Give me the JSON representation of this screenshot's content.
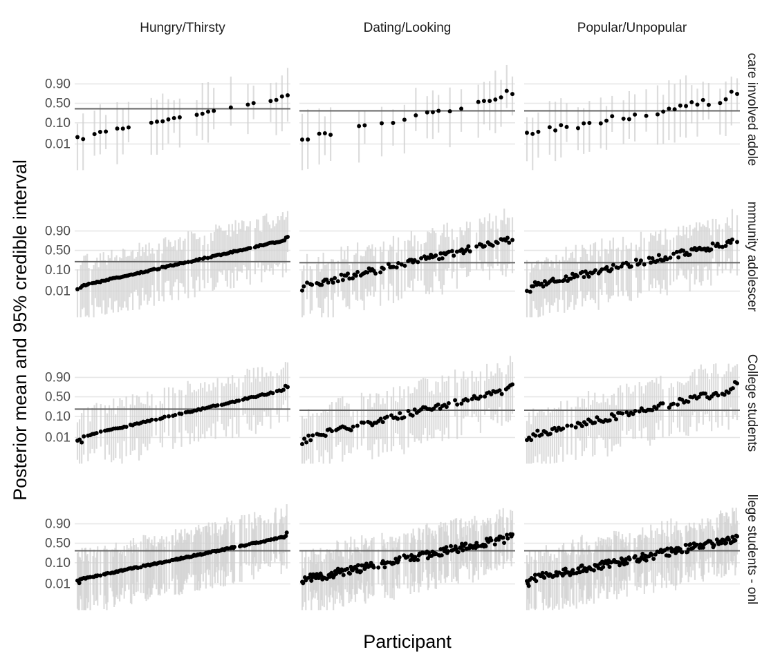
{
  "chart_data": {
    "type": "scatter",
    "description_kind": "faceted point-range plot",
    "xlabel": "Participant",
    "ylabel": "Posterior mean and 95% credible interval",
    "column_facets": [
      "Hungry/Thirsty",
      "Dating/Looking",
      "Popular/Unpopular"
    ],
    "row_facets": [
      "care involved adole",
      "mmunity adolescer",
      "College students",
      "llege students - onl"
    ],
    "y_scale": "logit",
    "y_ticks": [
      0.01,
      0.1,
      0.5,
      0.9
    ],
    "y_tick_labels": [
      "0.01",
      "0.10",
      "0.50",
      "0.90"
    ],
    "grid": true,
    "panel_ylim_y": [
      0.0005,
      0.998
    ],
    "reference_lines": [
      [
        0.35,
        0.3,
        0.3
      ],
      [
        0.22,
        0.2,
        0.2
      ],
      [
        0.2,
        0.18,
        0.18
      ],
      [
        0.3,
        0.3,
        0.3
      ]
    ],
    "participants_per_row": [
      38,
      130,
      100,
      230
    ],
    "panels": [
      {
        "row": 0,
        "col": 0,
        "mean_range": [
          0.015,
          0.75
        ],
        "points_shown": 26
      },
      {
        "row": 0,
        "col": 1,
        "mean_range": [
          0.012,
          0.75
        ],
        "points_shown": 24
      },
      {
        "row": 0,
        "col": 2,
        "mean_range": [
          0.02,
          0.75
        ],
        "points_shown": 28
      },
      {
        "row": 1,
        "col": 0,
        "mean_range": [
          0.01,
          0.85
        ],
        "points_shown": 110
      },
      {
        "row": 1,
        "col": 1,
        "mean_range": [
          0.01,
          0.85
        ],
        "points_shown": 95
      },
      {
        "row": 1,
        "col": 2,
        "mean_range": [
          0.01,
          0.82
        ],
        "points_shown": 95
      },
      {
        "row": 2,
        "col": 0,
        "mean_range": [
          0.006,
          0.8
        ],
        "points_shown": 85
      },
      {
        "row": 2,
        "col": 1,
        "mean_range": [
          0.005,
          0.8
        ],
        "points_shown": 85
      },
      {
        "row": 2,
        "col": 2,
        "mean_range": [
          0.007,
          0.8
        ],
        "points_shown": 85
      },
      {
        "row": 3,
        "col": 0,
        "mean_range": [
          0.01,
          0.78
        ],
        "points_shown": 160
      },
      {
        "row": 3,
        "col": 1,
        "mean_range": [
          0.01,
          0.75
        ],
        "points_shown": 160
      },
      {
        "row": 3,
        "col": 2,
        "mean_range": [
          0.01,
          0.72
        ],
        "points_shown": 160
      }
    ],
    "colors": {
      "point": "#000000",
      "interval": "#d0d0d0",
      "reference": "#666666",
      "grid": "#e6e6e6",
      "strip_text": "#1a1a1a",
      "tick_text": "#4d4d4d"
    }
  }
}
